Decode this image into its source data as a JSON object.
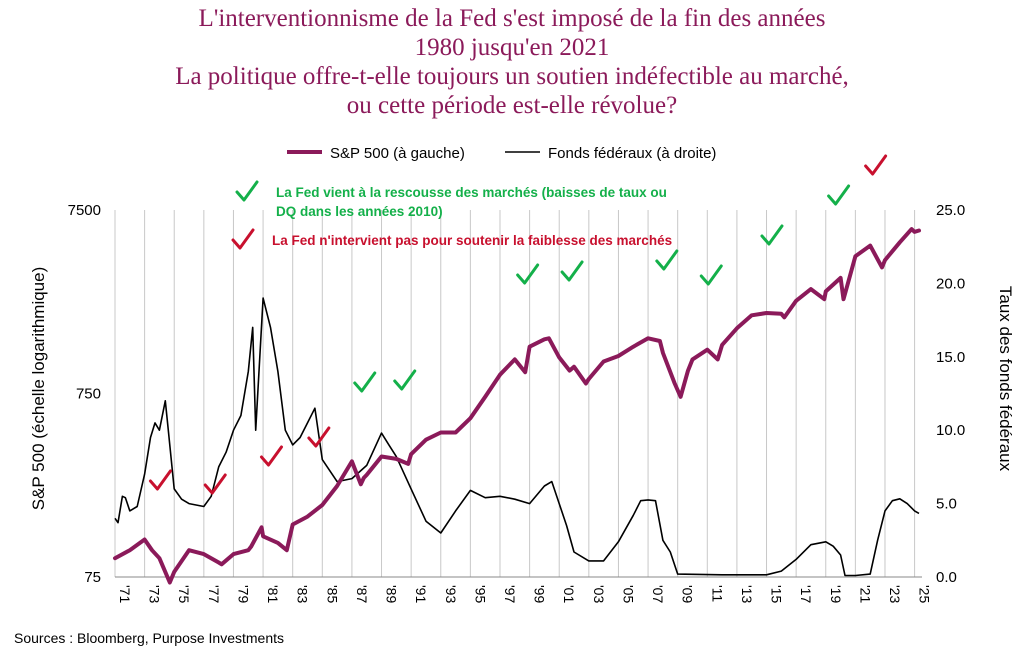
{
  "title_lines": [
    "L'interventionnisme de la Fed s'est imposé de la fin des années",
    "1980 jusqu'en 2021",
    "La politique offre-t-elle toujours un soutien indéfectible au marché,",
    "ou cette période est-elle révolue?"
  ],
  "source": "Sources : Bloomberg, Purpose Investments",
  "colors": {
    "title": "#8b1a5a",
    "sp500": "#8b1a5a",
    "fed_funds": "#000000",
    "check_green": "#14b04a",
    "check_red": "#c8102e",
    "grid": "#c8c8c8"
  },
  "chart_data": {
    "type": "line",
    "legend_position": "top-center",
    "grid": "vertical",
    "ylabel_left": "S&P 500 (échelle logarithmique)",
    "ylabel_right": "Taux des fonds fédéraux",
    "left_axis": {
      "scale": "log",
      "ylim": [
        75,
        7500
      ],
      "ticks": [
        75,
        750,
        7500
      ],
      "tick_labels": [
        "75",
        "750",
        "7500"
      ]
    },
    "right_axis": {
      "ylim": [
        0,
        25
      ],
      "ticks": [
        0,
        5,
        10,
        15,
        20,
        25
      ],
      "tick_labels": [
        "0.0",
        "5.0",
        "10.0",
        "15.0",
        "20.0",
        "25.0"
      ]
    },
    "x_axis": {
      "xlim": [
        1971,
        2025.5
      ],
      "ticks": [
        1971,
        1973,
        1975,
        1977,
        1979,
        1981,
        1983,
        1985,
        1987,
        1989,
        1991,
        1993,
        1995,
        1997,
        1999,
        2001,
        2003,
        2005,
        2007,
        2009,
        2011,
        2013,
        2015,
        2017,
        2019,
        2021,
        2023,
        2025
      ],
      "tick_labels": [
        "'71",
        "'73",
        "'75",
        "'77",
        "'79",
        "'81",
        "'83",
        "'85",
        "'87",
        "'89",
        "'91",
        "'93",
        "'95",
        "'97",
        "'99",
        "'01",
        "'03",
        "'05",
        "'07",
        "'09",
        "'11",
        "'13",
        "'15",
        "'17",
        "'19",
        "'21",
        "'23",
        "'25"
      ]
    },
    "series": [
      {
        "name": "S&P 500 (à gauche)",
        "axis": "left",
        "x": [
          1971,
          1972,
          1973,
          1973.5,
          1974,
          1974.7,
          1975,
          1976,
          1977,
          1978,
          1978.2,
          1979,
          1980,
          1980.2,
          1980.9,
          1981,
          1982,
          1982.6,
          1983,
          1984,
          1985,
          1986,
          1987,
          1987.6,
          1987.8,
          1988,
          1989,
          1990,
          1990.8,
          1991,
          1992,
          1993,
          1994,
          1995,
          1996,
          1997,
          1998,
          1998.7,
          1999,
          2000,
          2000.3,
          2001,
          2001.7,
          2002,
          2002.8,
          2003,
          2004,
          2005,
          2006,
          2007,
          2007.8,
          2008,
          2008.8,
          2009.2,
          2009.7,
          2010,
          2011,
          2011.7,
          2012,
          2013,
          2014,
          2015,
          2016,
          2016.2,
          2017,
          2018,
          2018.9,
          2019,
          2020,
          2020.2,
          2020.5,
          2021,
          2022,
          2022.8,
          2023,
          2024,
          2024.8,
          2025,
          2025.3
        ],
        "y": [
          95,
          105,
          120,
          105,
          95,
          70,
          80,
          105,
          100,
          90,
          88,
          100,
          105,
          110,
          140,
          125,
          115,
          105,
          145,
          160,
          185,
          235,
          320,
          240,
          260,
          270,
          340,
          330,
          310,
          350,
          420,
          460,
          460,
          550,
          720,
          950,
          1150,
          980,
          1350,
          1480,
          1500,
          1180,
          1000,
          1050,
          850,
          900,
          1120,
          1200,
          1350,
          1500,
          1450,
          1250,
          850,
          720,
          1000,
          1150,
          1300,
          1150,
          1380,
          1700,
          2000,
          2060,
          2040,
          1950,
          2400,
          2780,
          2450,
          2700,
          3200,
          2450,
          3000,
          4200,
          4800,
          3650,
          4000,
          5000,
          5900,
          5700,
          5800
        ]
      },
      {
        "name": "Fonds fédéraux (à droite)",
        "axis": "right",
        "x": [
          1971,
          1971.2,
          1971.5,
          1971.7,
          1972,
          1972.5,
          1973,
          1973.4,
          1973.7,
          1974,
          1974.4,
          1974.6,
          1975,
          1975.5,
          1976,
          1977,
          1977.5,
          1978,
          1978.5,
          1979,
          1979.5,
          1980,
          1980.3,
          1980.5,
          1981,
          1981.5,
          1982,
          1982.5,
          1983,
          1983.5,
          1984,
          1984.5,
          1985,
          1986,
          1987,
          1988,
          1989,
          1989.5,
          1990,
          1991,
          1992,
          1993,
          1994,
          1995,
          1996,
          1997,
          1998,
          1999,
          2000,
          2000.5,
          2001,
          2001.5,
          2002,
          2003,
          2004,
          2005,
          2006,
          2006.5,
          2007,
          2007.5,
          2008,
          2008.5,
          2009,
          2012,
          2015,
          2016,
          2017,
          2018,
          2019,
          2019.5,
          2020,
          2020.3,
          2021,
          2022,
          2022.5,
          2023,
          2023.5,
          2024,
          2024.5,
          2025,
          2025.3
        ],
        "y": [
          4,
          3.7,
          5.5,
          5.4,
          4.5,
          4.8,
          7,
          9.5,
          10.5,
          10,
          12,
          10,
          6,
          5.3,
          5,
          4.8,
          5.5,
          7.5,
          8.5,
          10,
          11,
          14,
          17,
          10,
          19,
          17,
          14,
          10,
          9,
          9.5,
          10.5,
          11.5,
          8,
          6.5,
          6.7,
          7.6,
          9.8,
          9,
          8.2,
          6,
          3.8,
          3,
          4.5,
          5.9,
          5.4,
          5.5,
          5.3,
          5,
          6.2,
          6.5,
          5,
          3.5,
          1.7,
          1.1,
          1.1,
          2.4,
          4.2,
          5.2,
          5.25,
          5.2,
          2.5,
          1.7,
          0.2,
          0.15,
          0.15,
          0.4,
          1.2,
          2.2,
          2.4,
          2.1,
          1.5,
          0.1,
          0.1,
          0.2,
          2.5,
          4.5,
          5.2,
          5.33,
          5,
          4.5,
          4.33
        ]
      }
    ],
    "annotations": [
      {
        "text": "La Fed vient à la rescousse des marchés (baisses de taux ou DQ dans les années 2010)",
        "color": "green"
      },
      {
        "text": "La Fed n'intervient pas pour soutenir la faiblesse des marchés",
        "color": "red"
      }
    ],
    "green_checks_years": [
      1987.8,
      1990.5,
      1998.8,
      2001.8,
      2008.2,
      2011.2,
      2015.3,
      2019.8
    ],
    "red_checks_years": [
      1974,
      1977.7,
      1981.5,
      1984.7,
      2022.3
    ]
  }
}
